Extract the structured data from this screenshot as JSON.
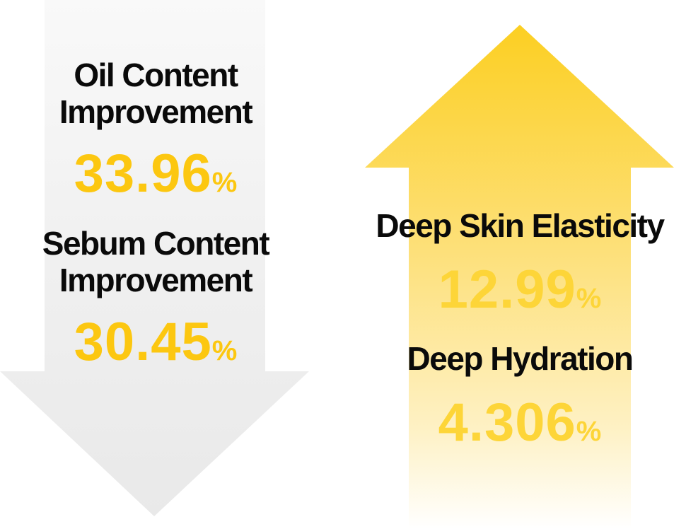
{
  "colors": {
    "down_arrow": "#ebebeb",
    "up_arrow_top": "#fcd02a",
    "up_arrow_bottom": "#ffffff",
    "value_yellow": "#fcc710",
    "label_black": "#0a0a0a"
  },
  "decrease": {
    "oil": {
      "label_line1": "Oil Content",
      "label_line2": "Improvement",
      "value": "33.96",
      "unit": "%"
    },
    "sebum": {
      "label_line1": "Sebum Content",
      "label_line2": "Improvement",
      "value": "30.45",
      "unit": "%"
    }
  },
  "increase": {
    "elasticity": {
      "label": "Deep Skin Elasticity",
      "value": "12.99",
      "unit": "%"
    },
    "hydration": {
      "label": "Deep Hydration",
      "value": "4.306",
      "unit": "%"
    }
  }
}
